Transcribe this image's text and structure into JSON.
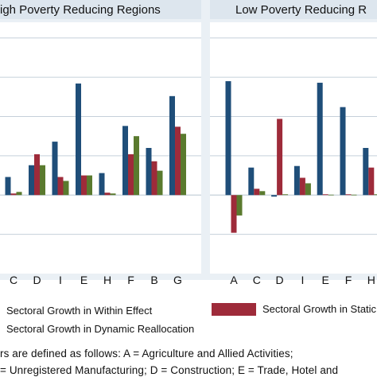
{
  "colors": {
    "within": "#1f4e79",
    "static": "#9e2b3a",
    "dynamic": "#5a7a2e",
    "strip": "#dde6ee",
    "panel_bg": "#ffffff",
    "grid": "#c5d0da",
    "outer_bg": "#eaf0f5"
  },
  "chart_data": [
    {
      "type": "bar",
      "title": "igh Poverty Reducing Regions",
      "categories": [
        "C",
        "D",
        "I",
        "E",
        "H",
        "F",
        "B",
        "G"
      ],
      "series": [
        {
          "name": "Sectoral Growth in Within Effect",
          "values": [
            2.3,
            3.8,
            6.8,
            14.2,
            2.8,
            8.8,
            6.0,
            12.6
          ]
        },
        {
          "name": "Sectoral Growth in Static",
          "values": [
            0.2,
            5.2,
            2.3,
            2.5,
            0.3,
            5.2,
            4.3,
            8.7
          ]
        },
        {
          "name": "Sectoral Growth in Dynamic Reallocation",
          "values": [
            0.4,
            3.8,
            1.8,
            2.5,
            0.2,
            7.5,
            3.1,
            7.8
          ]
        }
      ],
      "ylim": [
        -10,
        22
      ],
      "grid": true
    },
    {
      "type": "bar",
      "title": "Low Poverty Reducing R",
      "categories": [
        "A",
        "C",
        "D",
        "I",
        "E",
        "F",
        "H"
      ],
      "series": [
        {
          "name": "Sectoral Growth in Within Effect",
          "values": [
            14.5,
            3.5,
            -0.2,
            3.7,
            14.3,
            11.2,
            6.0
          ]
        },
        {
          "name": "Sectoral Growth in Static",
          "values": [
            -4.8,
            0.8,
            9.7,
            2.2,
            0.1,
            0.1,
            3.5
          ]
        },
        {
          "name": "Sectoral Growth in Dynamic Reallocation",
          "values": [
            -2.6,
            0.5,
            0.1,
            1.5,
            0.05,
            0.05,
            0.1
          ]
        }
      ],
      "ylim": [
        -10,
        22
      ],
      "grid": true
    }
  ],
  "legend": {
    "within": "Sectoral Growth in Within Effect",
    "static": "Sectoral Growth in Static",
    "dynamic": "Sectoral Growth in Dynamic Reallocation"
  },
  "note": {
    "line1": "rs are defined as follows: A = Agriculture and Allied Activities;",
    "line2": "= Unregistered Manufacturing; D = Construction; E = Trade, Hotel and"
  }
}
